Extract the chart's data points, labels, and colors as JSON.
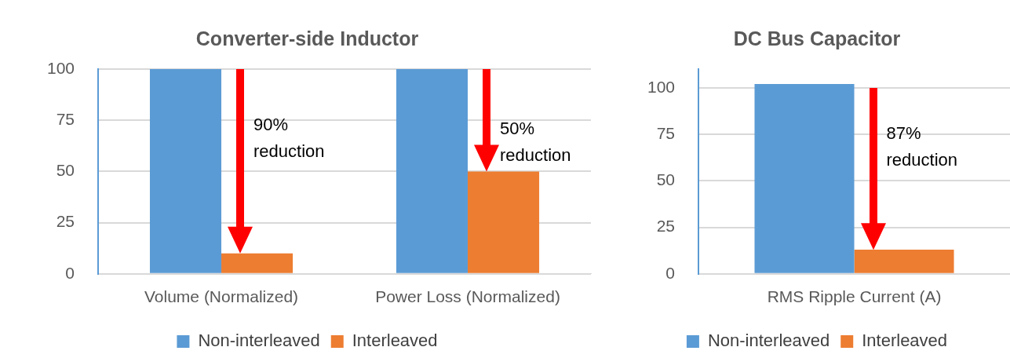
{
  "chart_data": [
    {
      "type": "bar",
      "title": "Converter-side Inductor",
      "categories": [
        "Volume (Normalized)",
        "Power Loss (Normalized)"
      ],
      "series": [
        {
          "name": "Non-interleaved",
          "color": "#5b9bd5",
          "values": [
            100,
            100
          ]
        },
        {
          "name": "Interleaved",
          "color": "#ed7d31",
          "values": [
            10,
            50
          ]
        }
      ],
      "ylim": [
        0,
        100
      ],
      "yticks": [
        0,
        25,
        50,
        75,
        100
      ],
      "grid": "y",
      "legend": "bottom",
      "annotations": [
        {
          "text": "90% reduction",
          "x": "Volume (Normalized)",
          "y": 66
        },
        {
          "text": "50% reduction",
          "x": "Power Loss (Normalized)",
          "y": 64
        }
      ]
    },
    {
      "type": "bar",
      "title": "DC Bus Capacitor",
      "categories": [
        "RMS Ripple Current (A)"
      ],
      "series": [
        {
          "name": "Non-interleaved",
          "color": "#5b9bd5",
          "values": [
            102
          ]
        },
        {
          "name": "Interleaved",
          "color": "#ed7d31",
          "values": [
            13
          ]
        }
      ],
      "ylim": [
        0,
        110
      ],
      "yticks": [
        0,
        25,
        50,
        75,
        100
      ],
      "grid": "y",
      "legend": "bottom",
      "annotations": [
        {
          "text": "87% reduction",
          "x": "RMS Ripple Current (A)",
          "y": 68
        }
      ]
    }
  ]
}
